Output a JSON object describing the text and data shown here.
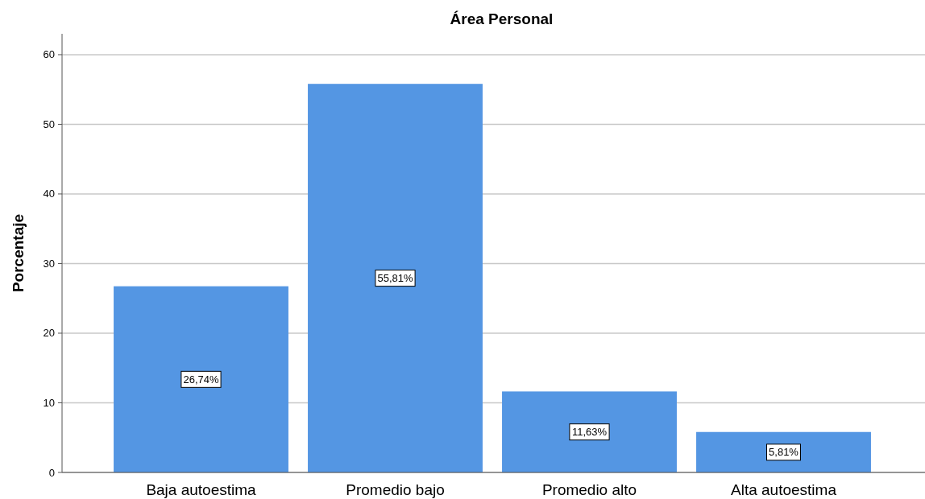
{
  "chart_data": {
    "type": "bar",
    "title": "Área Personal",
    "ylabel": "Porcentaje",
    "categories": [
      "Baja autoestima",
      "Promedio bajo",
      "Promedio alto",
      "Alta autoestima"
    ],
    "values": [
      26.74,
      55.81,
      11.63,
      5.81
    ],
    "value_labels": [
      "26,74%",
      "55,81%",
      "11,63%",
      "5,81%"
    ],
    "color": "#5496e3",
    "ylim": [
      0,
      63
    ],
    "yticks": [
      0,
      10,
      20,
      30,
      40,
      50,
      60
    ],
    "grid": "y"
  }
}
